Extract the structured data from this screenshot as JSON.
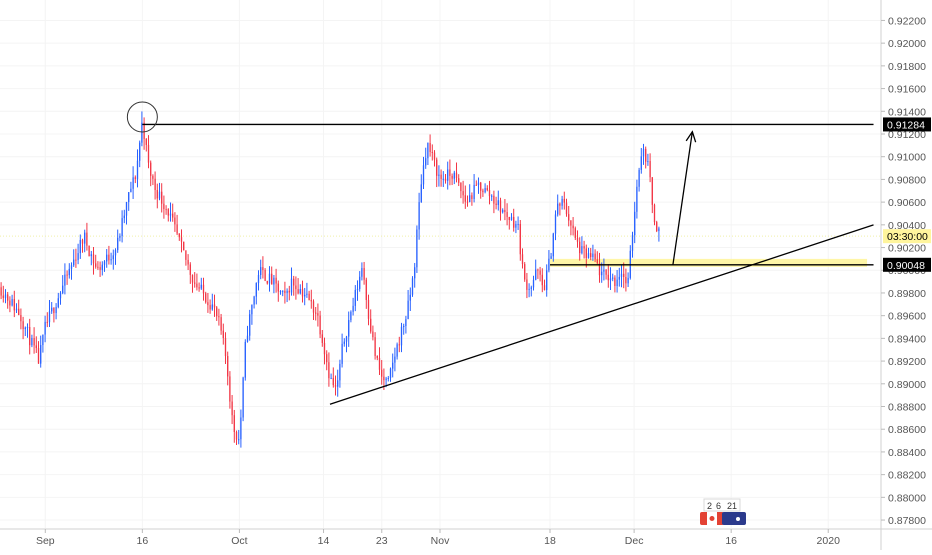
{
  "chart_data": {
    "type": "candlestick",
    "instrument_flags": [
      "CAD",
      "AUD"
    ],
    "badge_digits": [
      "2",
      "6",
      "21"
    ],
    "colors": {
      "up": "#2962ff",
      "down": "#f23645",
      "line": "#000000",
      "zone": "#fff59d",
      "axis_text": "#555555",
      "label_fill": "#000000",
      "label_text": "#ffffff",
      "time_label_fill": "#fff59d"
    },
    "y_axis": {
      "ylim": [
        0.8773,
        0.9238
      ],
      "ticks": [
        "0.87800",
        "0.88000",
        "0.88200",
        "0.88400",
        "0.88600",
        "0.88800",
        "0.89000",
        "0.89200",
        "0.89400",
        "0.89600",
        "0.89800",
        "0.90000",
        "0.90200",
        "0.90400",
        "0.90600",
        "0.90800",
        "0.91000",
        "0.91200",
        "0.91400",
        "0.91600",
        "0.91800",
        "0.92000",
        "0.92200"
      ]
    },
    "x_axis": {
      "ticks": [
        {
          "label": "Sep",
          "x": 0
        },
        {
          "label": "16",
          "x": 15
        },
        {
          "label": "Oct",
          "x": 30
        },
        {
          "label": "14",
          "x": 43
        },
        {
          "label": "23",
          "x": 52
        },
        {
          "label": "Nov",
          "x": 61
        },
        {
          "label": "18",
          "x": 78
        },
        {
          "label": "Dec",
          "x": 91
        },
        {
          "label": "16",
          "x": 106
        },
        {
          "label": "2020",
          "x": 121
        }
      ],
      "xlim": [
        -7,
        129
      ]
    },
    "price_path": [
      [
        -7,
        0.8985
      ],
      [
        -4,
        0.8962
      ],
      [
        -1,
        0.892
      ],
      [
        0,
        0.895
      ],
      [
        3,
        0.899
      ],
      [
        6,
        0.903
      ],
      [
        8,
        0.9
      ],
      [
        11,
        0.902
      ],
      [
        13,
        0.9068
      ],
      [
        14,
        0.9085
      ],
      [
        15,
        0.9132
      ],
      [
        16,
        0.909
      ],
      [
        17,
        0.9072
      ],
      [
        19,
        0.9052
      ],
      [
        21,
        0.902
      ],
      [
        23,
        0.899
      ],
      [
        25,
        0.8975
      ],
      [
        26,
        0.8967
      ],
      [
        27,
        0.895
      ],
      [
        28,
        0.892
      ],
      [
        29,
        0.8862
      ],
      [
        30,
        0.885
      ],
      [
        31,
        0.894
      ],
      [
        33,
        0.9
      ],
      [
        35,
        0.899
      ],
      [
        37,
        0.8975
      ],
      [
        38,
        0.899
      ],
      [
        40,
        0.898
      ],
      [
        42,
        0.8962
      ],
      [
        43,
        0.8935
      ],
      [
        44,
        0.8905
      ],
      [
        45,
        0.8893
      ],
      [
        46,
        0.8935
      ],
      [
        48,
        0.898
      ],
      [
        49,
        0.9005
      ],
      [
        50,
        0.896
      ],
      [
        51,
        0.8925
      ],
      [
        52,
        0.8905
      ],
      [
        53,
        0.89
      ],
      [
        54,
        0.8925
      ],
      [
        56,
        0.8965
      ],
      [
        57,
        0.9
      ],
      [
        58,
        0.9075
      ],
      [
        59,
        0.9112
      ],
      [
        61,
        0.908
      ],
      [
        63,
        0.9085
      ],
      [
        65,
        0.906
      ],
      [
        67,
        0.9075
      ],
      [
        69,
        0.9065
      ],
      [
        71,
        0.905
      ],
      [
        73,
        0.904
      ],
      [
        74,
        0.899
      ],
      [
        75,
        0.8985
      ],
      [
        76,
        0.9
      ],
      [
        77,
        0.8983
      ],
      [
        78,
        0.901
      ],
      [
        79,
        0.9055
      ],
      [
        80,
        0.906
      ],
      [
        81,
        0.9045
      ],
      [
        82,
        0.9025
      ],
      [
        83,
        0.9015
      ],
      [
        84,
        0.9012
      ],
      [
        85,
        0.9008
      ],
      [
        86,
        0.8995
      ],
      [
        87,
        0.8995
      ],
      [
        88,
        0.899
      ],
      [
        89,
        0.9
      ],
      [
        90,
        0.8985
      ],
      [
        91,
        0.905
      ],
      [
        92,
        0.9105
      ],
      [
        93,
        0.91
      ],
      [
        94,
        0.905
      ],
      [
        95,
        0.903
      ]
    ],
    "candle_count": 300,
    "annotations": {
      "resistance_line": {
        "x1": 15,
        "x2": 128,
        "y": 0.91284
      },
      "resistance_label": "0.91284",
      "support_line": {
        "x1": 44,
        "y1": 0.8882,
        "x2": 128,
        "y2": 0.904
      },
      "zone": {
        "x1": 78,
        "x2": 127,
        "y_low": 0.9003,
        "y_high": 0.901
      },
      "zone_line": {
        "x1": 78,
        "x2": 128,
        "y": 0.90048
      },
      "zone_label": "0.90048",
      "time_label": "03:30:00",
      "time_label_y": 0.903,
      "current_price_line_y": 0.903,
      "arrow": {
        "x1": 97,
        "y1": 0.9005,
        "x2": 100,
        "y2": 0.9122
      },
      "circle": {
        "x": 15,
        "y": 0.9135
      }
    }
  }
}
